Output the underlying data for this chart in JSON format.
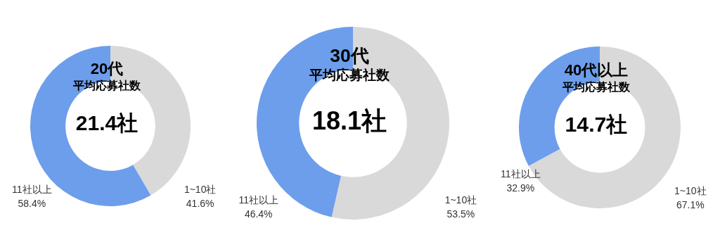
{
  "chart_data": [
    {
      "type": "donut",
      "title": "20代",
      "subtitle": "平均応募社数",
      "annotations": [
        "21.4社"
      ],
      "categories": [
        "1~10社",
        "11社以上"
      ],
      "values": [
        41.6,
        58.4
      ],
      "colors": [
        "#d9d9d9",
        "#6d9eeb"
      ],
      "value_labels": [
        "41.6%",
        "58.4%"
      ],
      "legend": false
    },
    {
      "type": "donut",
      "title": "30代",
      "subtitle": "平均応募社数",
      "annotations": [
        "18.1社"
      ],
      "categories": [
        "1~10社",
        "11社以上"
      ],
      "values": [
        53.5,
        46.4
      ],
      "colors": [
        "#d9d9d9",
        "#6d9eeb"
      ],
      "value_labels": [
        "53.5%",
        "46.4%"
      ],
      "legend": false
    },
    {
      "type": "donut",
      "title": "40代以上",
      "subtitle": "平均応募社数",
      "annotations": [
        "14.7社"
      ],
      "categories": [
        "1~10社",
        "11社以上"
      ],
      "values": [
        67.1,
        32.9
      ],
      "colors": [
        "#d9d9d9",
        "#6d9eeb"
      ],
      "value_labels": [
        "67.1%",
        "32.9%"
      ],
      "legend": false
    }
  ]
}
